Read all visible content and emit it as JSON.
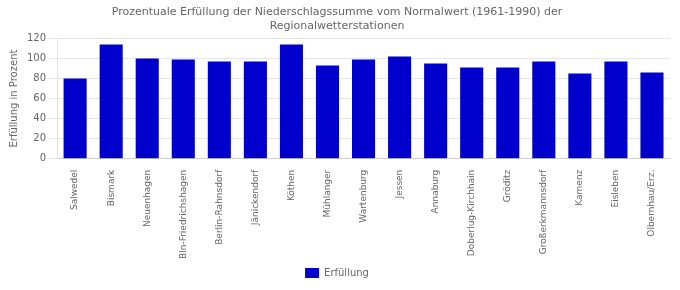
{
  "chart_data": {
    "type": "bar",
    "title": "Prozentuale Erfüllung der Niederschlagssumme vom Normalwert (1961-1990) der\nRegionalwetterstationen",
    "y_label": "Erfüllung in Prozent",
    "categories": [
      "Salwedel",
      "Bismark",
      "Neuenhagen",
      "Bln-Friedrichshagen",
      "Berlin-Rahnsdorf",
      "Jänickendorf",
      "Köthen",
      "Mühlanger",
      "Wartenburg",
      "Jessen",
      "Annaburg",
      "Doberlug-Kirchhain",
      "Gröditz",
      "Großerkmannsdorf",
      "Kamenz",
      "Eisleben",
      "Olbernhau/Erz."
    ],
    "series": [
      {
        "name": "Erfüllung",
        "color": "#0000CC",
        "values": [
          80,
          114,
          100,
          99,
          97,
          97,
          114,
          93,
          99,
          102,
          95,
          91,
          91,
          97,
          85,
          97,
          86
        ]
      }
    ],
    "ylim": [
      0,
      120
    ],
    "yticks": [
      0,
      20,
      40,
      60,
      80,
      100,
      120
    ],
    "grid": true,
    "legend": "bottom"
  }
}
